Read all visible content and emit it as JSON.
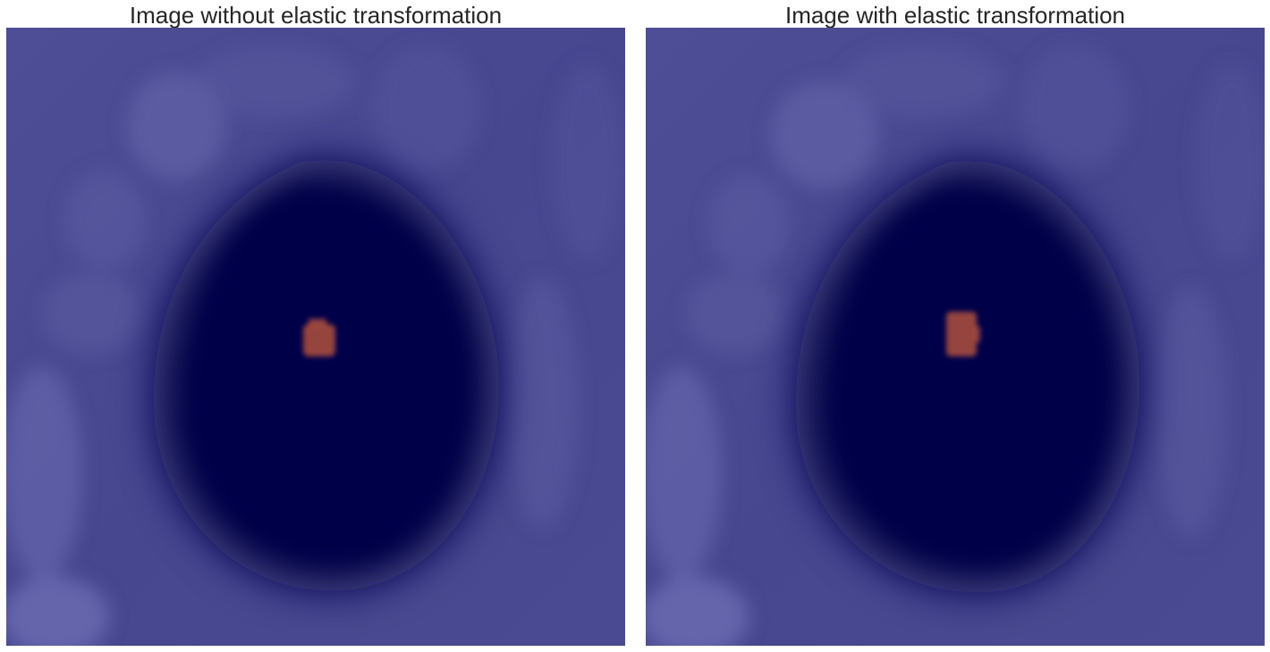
{
  "panels": [
    {
      "title": "Image without elastic transformation",
      "overlay_color": "#3a3a8c",
      "lesion_color": "#b04a3a"
    },
    {
      "title": "Image with elastic transformation",
      "overlay_color": "#3a3a8c",
      "lesion_color": "#b04a3a"
    }
  ]
}
